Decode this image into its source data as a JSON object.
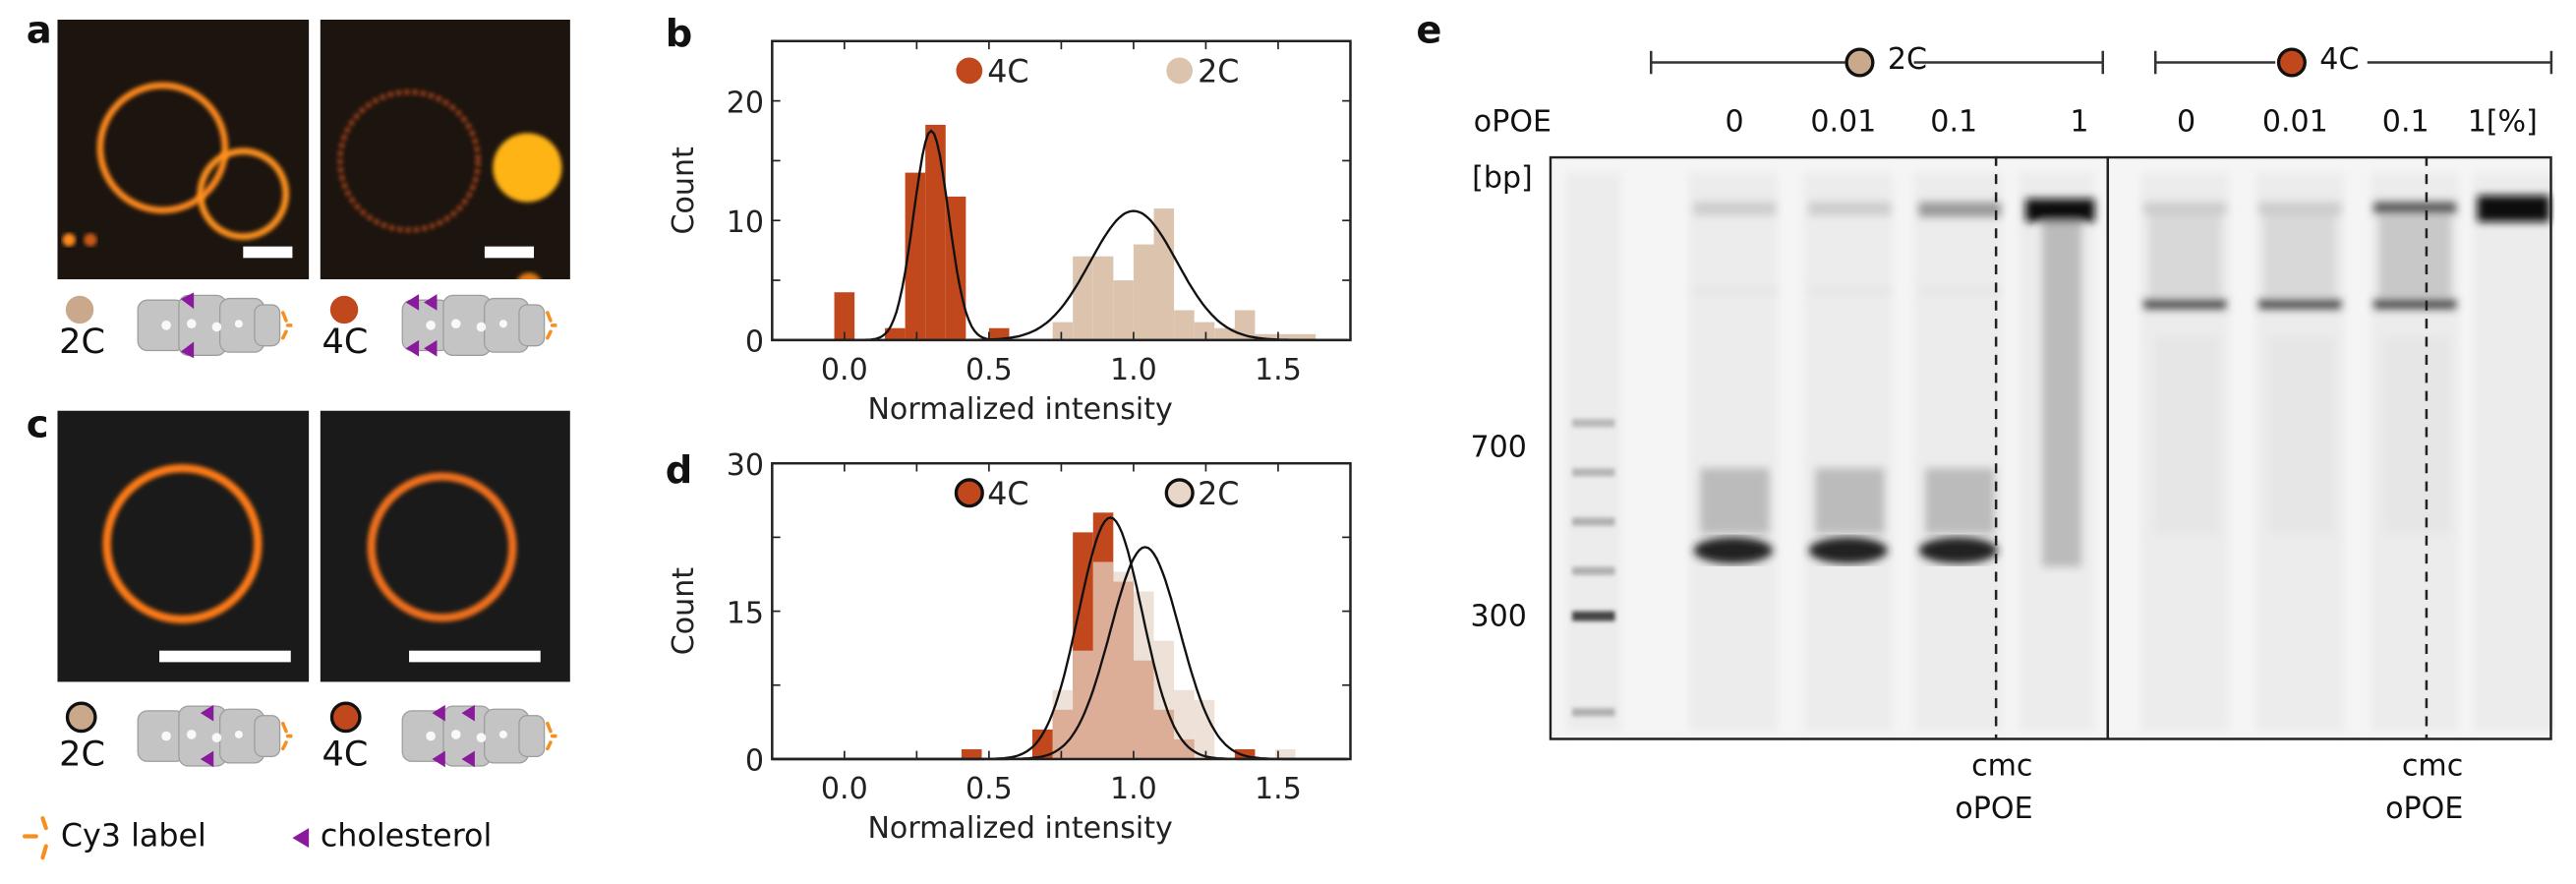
{
  "panels": {
    "a": "a",
    "b": "b",
    "c": "c",
    "d": "d",
    "e": "e"
  },
  "constructs": {
    "two": "2C",
    "four": "4C"
  },
  "legend": {
    "cy3": "Cy3 label",
    "cholesterol": "cholesterol"
  },
  "colors": {
    "c4": "#c0481c",
    "c2": "#dcc3ae",
    "c2_light": "#e8d6c8",
    "ring": "#ff8a1e",
    "cholesterol": "#8a1a9c"
  },
  "gel": {
    "group_2c": "2C",
    "group_4c": "4C",
    "row_label": "oPOE",
    "lanes_2c": [
      "0",
      "0.01",
      "0.1",
      "1"
    ],
    "lanes_4c": [
      "0",
      "0.01",
      "0.1",
      "1[%]"
    ],
    "size_unit": "[bp]",
    "size_markers": [
      "700",
      "300"
    ],
    "cmc_label": "cmc",
    "cmc_label2": "oPOE"
  },
  "chart_data": [
    {
      "type": "bar",
      "panel": "b",
      "xlabel": "Normalized intensity",
      "ylabel": "Count",
      "xlim": [
        -0.25,
        1.75
      ],
      "ylim": [
        0,
        25
      ],
      "xticks": [
        "0.0",
        "0.5",
        "1.0",
        "1.5"
      ],
      "xtick_values": [
        0,
        0.5,
        1.0,
        1.5
      ],
      "yticks": [
        "0",
        "10",
        "20"
      ],
      "ytick_values": [
        0,
        10,
        20
      ],
      "legend": "top",
      "bin_width": 0.07,
      "series": [
        {
          "name": "4C",
          "color": "#c0481c",
          "centers": [
            0.0,
            0.175,
            0.245,
            0.315,
            0.385,
            0.535
          ],
          "counts": [
            4,
            1,
            14,
            18,
            12,
            1
          ],
          "fit": {
            "mean": 0.3,
            "sd": 0.06,
            "amp": 17.5
          }
        },
        {
          "name": "2C",
          "color": "#dcc3ae",
          "centers": [
            0.755,
            0.825,
            0.895,
            0.965,
            1.035,
            1.105,
            1.175,
            1.245,
            1.315,
            1.385,
            1.455,
            1.525,
            1.595
          ],
          "counts": [
            1.5,
            7,
            7,
            5,
            8,
            11,
            2.5,
            1.5,
            1,
            2.5,
            0.5,
            0.5,
            0.5
          ],
          "fit": {
            "mean": 1.0,
            "sd": 0.15,
            "amp": 10.8
          }
        }
      ]
    },
    {
      "type": "bar",
      "panel": "d",
      "xlabel": "Normalized intensity",
      "ylabel": "Count",
      "xlim": [
        -0.25,
        1.75
      ],
      "ylim": [
        0,
        30
      ],
      "xticks": [
        "0.0",
        "0.5",
        "1.0",
        "1.5"
      ],
      "xtick_values": [
        0,
        0.5,
        1.0,
        1.5
      ],
      "yticks": [
        "0",
        "15",
        "30"
      ],
      "ytick_values": [
        0,
        15,
        30
      ],
      "legend": "top",
      "bin_width": 0.07,
      "series": [
        {
          "name": "4C",
          "color": "#c0481c",
          "centers": [
            0.44,
            0.685,
            0.755,
            0.825,
            0.895,
            0.965,
            1.035,
            1.105,
            1.175,
            1.385
          ],
          "counts": [
            1,
            3,
            5,
            23,
            25,
            18,
            10,
            5,
            2,
            1
          ],
          "fit": {
            "mean": 0.92,
            "sd": 0.11,
            "amp": 24.5
          }
        },
        {
          "name": "2C",
          "color": "#e8d6c8",
          "centers": [
            0.755,
            0.825,
            0.895,
            0.965,
            1.035,
            1.105,
            1.175,
            1.245,
            1.525
          ],
          "counts": [
            7,
            11,
            20,
            19,
            17,
            12,
            7,
            6,
            1
          ],
          "fit": {
            "mean": 1.04,
            "sd": 0.12,
            "amp": 21.5
          }
        }
      ]
    }
  ]
}
